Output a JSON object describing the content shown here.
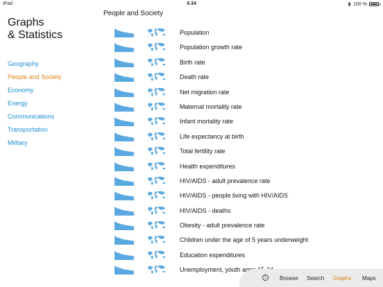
{
  "status": {
    "device": "iPad",
    "time": "9.34",
    "bluetooth_icon": "bluetooth-icon",
    "battery": "100 %"
  },
  "sidebar": {
    "title": "Graphs\n& Statistics",
    "items": [
      {
        "label": "Geography",
        "active": false
      },
      {
        "label": "People and Society",
        "active": true
      },
      {
        "label": "Economy",
        "active": false
      },
      {
        "label": "Energy",
        "active": false
      },
      {
        "label": "Communications",
        "active": false
      },
      {
        "label": "Transportation",
        "active": false
      },
      {
        "label": "Military",
        "active": false
      }
    ]
  },
  "main": {
    "section_title": "People and Society",
    "rows": [
      {
        "label": "Population"
      },
      {
        "label": "Population growth rate"
      },
      {
        "label": "Birth rate"
      },
      {
        "label": "Death rate"
      },
      {
        "label": "Net migration rate"
      },
      {
        "label": "Maternal mortality rate"
      },
      {
        "label": "Infant mortality rate"
      },
      {
        "label": "Life expectancy at birth"
      },
      {
        "label": "Total fertility rate"
      },
      {
        "label": "Health expenditures"
      },
      {
        "label": "HIV/AIDS - adult prevalence rate"
      },
      {
        "label": "HIV/AIDS - people living with HIV/AIDS"
      },
      {
        "label": "HIV/AIDS - deaths"
      },
      {
        "label": "Obesity - adult prevalence rate"
      },
      {
        "label": "Children under the age of 5 years underweight"
      },
      {
        "label": "Education expenditures"
      },
      {
        "label": "Unemployment, youth ages 15-24"
      }
    ]
  },
  "tabbar": {
    "info_icon": "info-icon",
    "tabs": [
      {
        "label": "Browse",
        "active": false
      },
      {
        "label": "Search",
        "active": false
      },
      {
        "label": "Graphs",
        "active": true
      },
      {
        "label": "Maps",
        "active": false
      }
    ]
  },
  "colors": {
    "accent_orange": "#dd7d12",
    "link_blue": "#1a8ed1",
    "thumbnail_blue": "#5aa8e0"
  }
}
